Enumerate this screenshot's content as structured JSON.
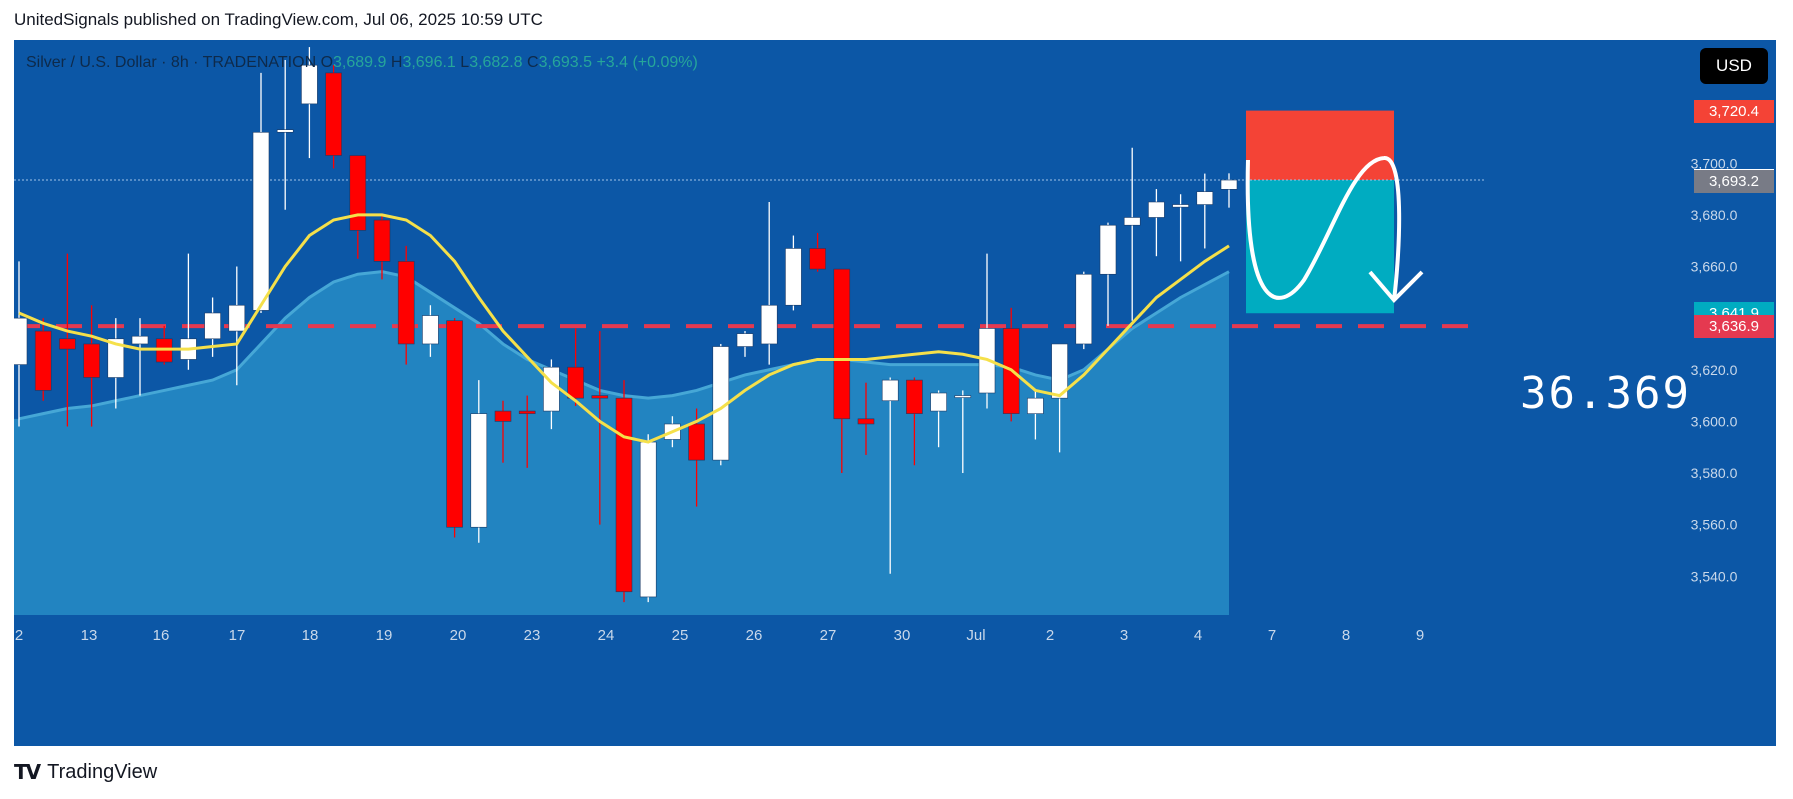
{
  "publisher_line": "UnitedSignals published on TradingView.com, Jul 06, 2025 10:59 UTC",
  "legend": {
    "symbol": "Silver / U.S. Dollar · 8h · TRADENATION",
    "o_label": "O",
    "o": "3,689.9",
    "h_label": "H",
    "h": "3,696.1",
    "l_label": "L",
    "l": "3,682.8",
    "c_label": "C",
    "c": "3,693.5",
    "change": "+3.4 (+0.09%)"
  },
  "currency": "USD",
  "annotation": "36.369",
  "footer": {
    "brand": "TradingView"
  },
  "colors": {
    "background": "#0c57a6",
    "up_candle": "#ffffff",
    "down_candle": "#ff0000",
    "ma_line": "#f5e04a",
    "area_fill": "#2a93c9",
    "stop_zone": "#f44336",
    "target_zone": "#00acc1",
    "level_line": "#e53950"
  },
  "chart_data": {
    "type": "candlestick",
    "timeframe": "8h",
    "ylim": [
      3525,
      3740
    ],
    "y_ticks": [
      3540,
      3560,
      3580,
      3600,
      3620,
      3660,
      3680,
      3700
    ],
    "x_labels": [
      "2",
      "13",
      "16",
      "17",
      "18",
      "19",
      "20",
      "23",
      "24",
      "25",
      "26",
      "27",
      "30",
      "Jul",
      "2",
      "3",
      "4",
      "7",
      "8",
      "9"
    ],
    "candles": [
      {
        "o": 3622,
        "h": 3662,
        "l": 3598,
        "c": 3640
      },
      {
        "o": 3635,
        "h": 3640,
        "l": 3608,
        "c": 3612
      },
      {
        "o": 3632,
        "h": 3665,
        "l": 3598,
        "c": 3628
      },
      {
        "o": 3630,
        "h": 3645,
        "l": 3598,
        "c": 3617
      },
      {
        "o": 3617,
        "h": 3640,
        "l": 3605,
        "c": 3632
      },
      {
        "o": 3630,
        "h": 3640,
        "l": 3610,
        "c": 3633
      },
      {
        "o": 3632,
        "h": 3637,
        "l": 3622,
        "c": 3623
      },
      {
        "o": 3624,
        "h": 3665,
        "l": 3620,
        "c": 3632
      },
      {
        "o": 3632,
        "h": 3648,
        "l": 3625,
        "c": 3642
      },
      {
        "o": 3635,
        "h": 3660,
        "l": 3614,
        "c": 3645
      },
      {
        "o": 3643,
        "h": 3735,
        "l": 3642,
        "c": 3712
      },
      {
        "o": 3712,
        "h": 3740,
        "l": 3682,
        "c": 3713
      },
      {
        "o": 3723,
        "h": 3745,
        "l": 3702,
        "c": 3738
      },
      {
        "o": 3735,
        "h": 3738,
        "l": 3698,
        "c": 3703
      },
      {
        "o": 3703,
        "h": 3703,
        "l": 3663,
        "c": 3674
      },
      {
        "o": 3678,
        "h": 3680,
        "l": 3655,
        "c": 3662
      },
      {
        "o": 3662,
        "h": 3668,
        "l": 3622,
        "c": 3630
      },
      {
        "o": 3630,
        "h": 3645,
        "l": 3625,
        "c": 3641
      },
      {
        "o": 3639,
        "h": 3640,
        "l": 3555,
        "c": 3559
      },
      {
        "o": 3559,
        "h": 3616,
        "l": 3553,
        "c": 3603
      },
      {
        "o": 3604,
        "h": 3608,
        "l": 3584,
        "c": 3600
      },
      {
        "o": 3604,
        "h": 3610,
        "l": 3582,
        "c": 3603
      },
      {
        "o": 3604,
        "h": 3624,
        "l": 3597,
        "c": 3621
      },
      {
        "o": 3621,
        "h": 3636,
        "l": 3606,
        "c": 3609
      },
      {
        "o": 3610,
        "h": 3635,
        "l": 3560,
        "c": 3609
      },
      {
        "o": 3609,
        "h": 3616,
        "l": 3530,
        "c": 3534
      },
      {
        "o": 3532,
        "h": 3595,
        "l": 3530,
        "c": 3592
      },
      {
        "o": 3593,
        "h": 3602,
        "l": 3590,
        "c": 3599
      },
      {
        "o": 3599,
        "h": 3605,
        "l": 3567,
        "c": 3585
      },
      {
        "o": 3585,
        "h": 3630,
        "l": 3583,
        "c": 3629
      },
      {
        "o": 3629,
        "h": 3635,
        "l": 3625,
        "c": 3634
      },
      {
        "o": 3630,
        "h": 3685,
        "l": 3622,
        "c": 3645
      },
      {
        "o": 3645,
        "h": 3672,
        "l": 3643,
        "c": 3667
      },
      {
        "o": 3667,
        "h": 3673,
        "l": 3658,
        "c": 3659
      },
      {
        "o": 3659,
        "h": 3659,
        "l": 3580,
        "c": 3601
      },
      {
        "o": 3601,
        "h": 3615,
        "l": 3587,
        "c": 3599
      },
      {
        "o": 3608,
        "h": 3617,
        "l": 3541,
        "c": 3616
      },
      {
        "o": 3616,
        "h": 3617,
        "l": 3583,
        "c": 3603
      },
      {
        "o": 3604,
        "h": 3612,
        "l": 3590,
        "c": 3611
      },
      {
        "o": 3610,
        "h": 3612,
        "l": 3580,
        "c": 3610
      },
      {
        "o": 3611,
        "h": 3665,
        "l": 3605,
        "c": 3636
      },
      {
        "o": 3636,
        "h": 3644,
        "l": 3600,
        "c": 3603
      },
      {
        "o": 3603,
        "h": 3612,
        "l": 3593,
        "c": 3609
      },
      {
        "o": 3609,
        "h": 3630,
        "l": 3588,
        "c": 3630
      },
      {
        "o": 3630,
        "h": 3658,
        "l": 3628,
        "c": 3657
      },
      {
        "o": 3657,
        "h": 3677,
        "l": 3637,
        "c": 3676
      },
      {
        "o": 3676,
        "h": 3706,
        "l": 3639,
        "c": 3679
      },
      {
        "o": 3679,
        "h": 3690,
        "l": 3664,
        "c": 3685
      },
      {
        "o": 3683,
        "h": 3688,
        "l": 3662,
        "c": 3684
      },
      {
        "o": 3684,
        "h": 3696,
        "l": 3667,
        "c": 3689
      },
      {
        "o": 3689.9,
        "h": 3696.1,
        "l": 3682.8,
        "c": 3693.5
      }
    ],
    "ma_line": [
      3642,
      3638,
      3635,
      3633,
      3630,
      3628,
      3628,
      3628,
      3629,
      3630,
      3645,
      3660,
      3672,
      3678,
      3680,
      3680,
      3678,
      3672,
      3662,
      3648,
      3635,
      3625,
      3615,
      3608,
      3600,
      3594,
      3592,
      3596,
      3600,
      3605,
      3612,
      3618,
      3622,
      3624,
      3624,
      3624,
      3625,
      3626,
      3627,
      3626,
      3624,
      3620,
      3612,
      3610,
      3618,
      3628,
      3638,
      3648,
      3655,
      3662,
      3668
    ],
    "area_line": [
      3601,
      3603,
      3605,
      3606,
      3608,
      3610,
      3612,
      3614,
      3616,
      3620,
      3630,
      3640,
      3648,
      3654,
      3657,
      3658,
      3656,
      3650,
      3644,
      3638,
      3630,
      3624,
      3620,
      3616,
      3612,
      3610,
      3609,
      3610,
      3612,
      3615,
      3618,
      3620,
      3622,
      3624,
      3624,
      3623,
      3622,
      3622,
      3622,
      3622,
      3622,
      3621,
      3618,
      3616,
      3620,
      3628,
      3636,
      3642,
      3648,
      3653,
      3658
    ],
    "horizontal_level": 3636.9,
    "position": {
      "entry": 3693.5,
      "stop": 3720.4,
      "target": 3641.9
    },
    "price_labels": [
      {
        "value": "3,720.4",
        "price": 3720.4,
        "bg": "#f44336",
        "fg": "#ffffff"
      },
      {
        "value": "3,693.5",
        "price": 3693.5,
        "bg": "#ffffff",
        "fg": "#131722"
      },
      {
        "value": "3,693.2",
        "price": 3693.2,
        "bg": "#787b86",
        "fg": "#ffffff"
      },
      {
        "value": "3,641.9",
        "price": 3641.9,
        "bg": "#00acc1",
        "fg": "#ffffff"
      },
      {
        "value": "3,636.9",
        "price": 3636.9,
        "bg": "#e53950",
        "fg": "#ffffff"
      }
    ]
  }
}
